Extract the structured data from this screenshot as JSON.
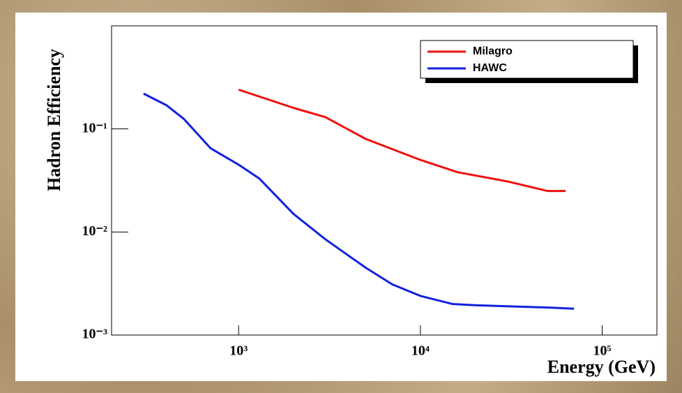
{
  "chart_data": {
    "type": "line",
    "x_label": "Energy (GeV)",
    "y_label": "Hadron Efficiency",
    "xlog": true,
    "ylog": true,
    "xlim": [
      200,
      200000
    ],
    "ylim": [
      0.001,
      1
    ],
    "xticks": [
      {
        "value": 1000,
        "label": "10³"
      },
      {
        "value": 10000,
        "label": "10⁴"
      },
      {
        "value": 100000,
        "label": "10⁵"
      }
    ],
    "yticks": [
      {
        "value": 0.001,
        "label": "10⁻³"
      },
      {
        "value": 0.01,
        "label": "10⁻²"
      },
      {
        "value": 0.1,
        "label": "10⁻¹"
      }
    ],
    "legend_position": "upper right",
    "series": [
      {
        "name": "Milagro",
        "color": "#ee1111",
        "x": [
          1000,
          2000,
          3000,
          5000,
          10000,
          16000,
          30000,
          50000,
          63000
        ],
        "values": [
          0.24,
          0.16,
          0.13,
          0.08,
          0.05,
          0.038,
          0.031,
          0.025,
          0.025
        ]
      },
      {
        "name": "HAWC",
        "color": "#1122dd",
        "x": [
          300,
          400,
          500,
          700,
          1000,
          1300,
          2000,
          3000,
          5000,
          7000,
          10000,
          15000,
          20000,
          30000,
          50000,
          70000
        ],
        "values": [
          0.22,
          0.17,
          0.125,
          0.065,
          0.045,
          0.033,
          0.015,
          0.0085,
          0.0045,
          0.0031,
          0.0024,
          0.002,
          0.00195,
          0.0019,
          0.00185,
          0.0018
        ]
      }
    ]
  }
}
